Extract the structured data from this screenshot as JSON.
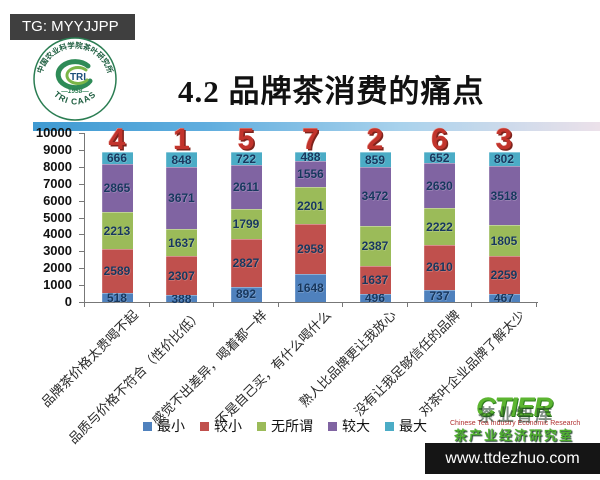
{
  "badge": {
    "label": "TG: MYYJJPP"
  },
  "logo": {
    "top_text": "中国农业科学院茶叶研究所",
    "center_text": "TRI",
    "year_text": "—1958—",
    "bottom_text": "TRI CAAS"
  },
  "title": "4.2 品牌茶消费的痛点",
  "chart_data": {
    "type": "bar",
    "stacked": true,
    "title": "4.2 品牌茶消费的痛点",
    "ylim": [
      0,
      10000
    ],
    "ytick_step": 1000,
    "grid": false,
    "legend_position": "bottom",
    "categories": [
      "品牌茶价格太贵喝不起",
      "品质与价格不符合（性价比低）",
      "感觉不出差异，喝着都一样",
      "不是自己买，有什么喝什么",
      "熟人比品牌更让我放心",
      "没有让我足够信任的品牌",
      "对茶叶企业品牌了解太少"
    ],
    "rank_annotations": [
      "4",
      "1",
      "5",
      "7",
      "2",
      "6",
      "3"
    ],
    "series": [
      {
        "name": "最小",
        "color": "#4F81BD",
        "values": [
          518,
          388,
          892,
          1648,
          496,
          737,
          467
        ]
      },
      {
        "name": "较小",
        "color": "#C0504D",
        "values": [
          2589,
          2307,
          2827,
          2958,
          1637,
          2610,
          2259
        ]
      },
      {
        "name": "无所谓",
        "color": "#9BBB59",
        "values": [
          2213,
          1637,
          1799,
          2201,
          2387,
          2222,
          1805
        ]
      },
      {
        "name": "较大",
        "color": "#8064A2",
        "values": [
          2865,
          3671,
          2611,
          1556,
          3472,
          2630,
          3518
        ]
      },
      {
        "name": "最大",
        "color": "#4BACC6",
        "values": [
          666,
          848,
          722,
          488,
          859,
          652,
          802
        ]
      }
    ]
  },
  "footer": {
    "ctier_acronym": "CTIER",
    "ctier_en": "Chinese Tea Industry Economic Research",
    "ctier_cn": "茶产业经济研究室",
    "watermark": "茶业智库",
    "url": "www.ttdezhuo.com"
  }
}
